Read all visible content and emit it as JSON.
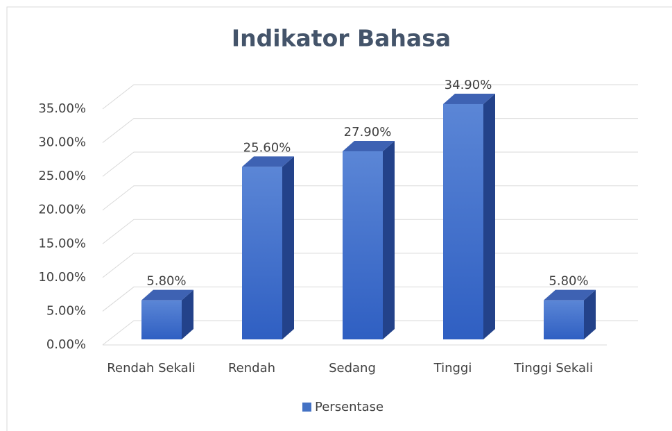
{
  "chart_data": {
    "type": "bar3d",
    "title": "Indikator Bahasa",
    "categories": [
      "Rendah Sekali",
      "Rendah",
      "Sedang",
      "Tinggi",
      "Tinggi Sekali"
    ],
    "series": [
      {
        "name": "Persentase",
        "color": "#4472c4",
        "values": [
          5.8,
          25.6,
          27.9,
          34.9,
          5.8
        ],
        "value_labels": [
          "5.80%",
          "25.60%",
          "27.90%",
          "34.90%",
          "5.80%"
        ]
      }
    ],
    "ylim": [
      0,
      35
    ],
    "yticks": [
      {
        "value": 0,
        "label": "0.00%"
      },
      {
        "value": 5,
        "label": "5.00%"
      },
      {
        "value": 10,
        "label": "10.00%"
      },
      {
        "value": 15,
        "label": "15.00%"
      },
      {
        "value": 20,
        "label": "20.00%"
      },
      {
        "value": 25,
        "label": "25.00%"
      },
      {
        "value": 30,
        "label": "30.00%"
      },
      {
        "value": 35,
        "label": "35.00%"
      }
    ],
    "grid": true,
    "legend": "bottom"
  }
}
